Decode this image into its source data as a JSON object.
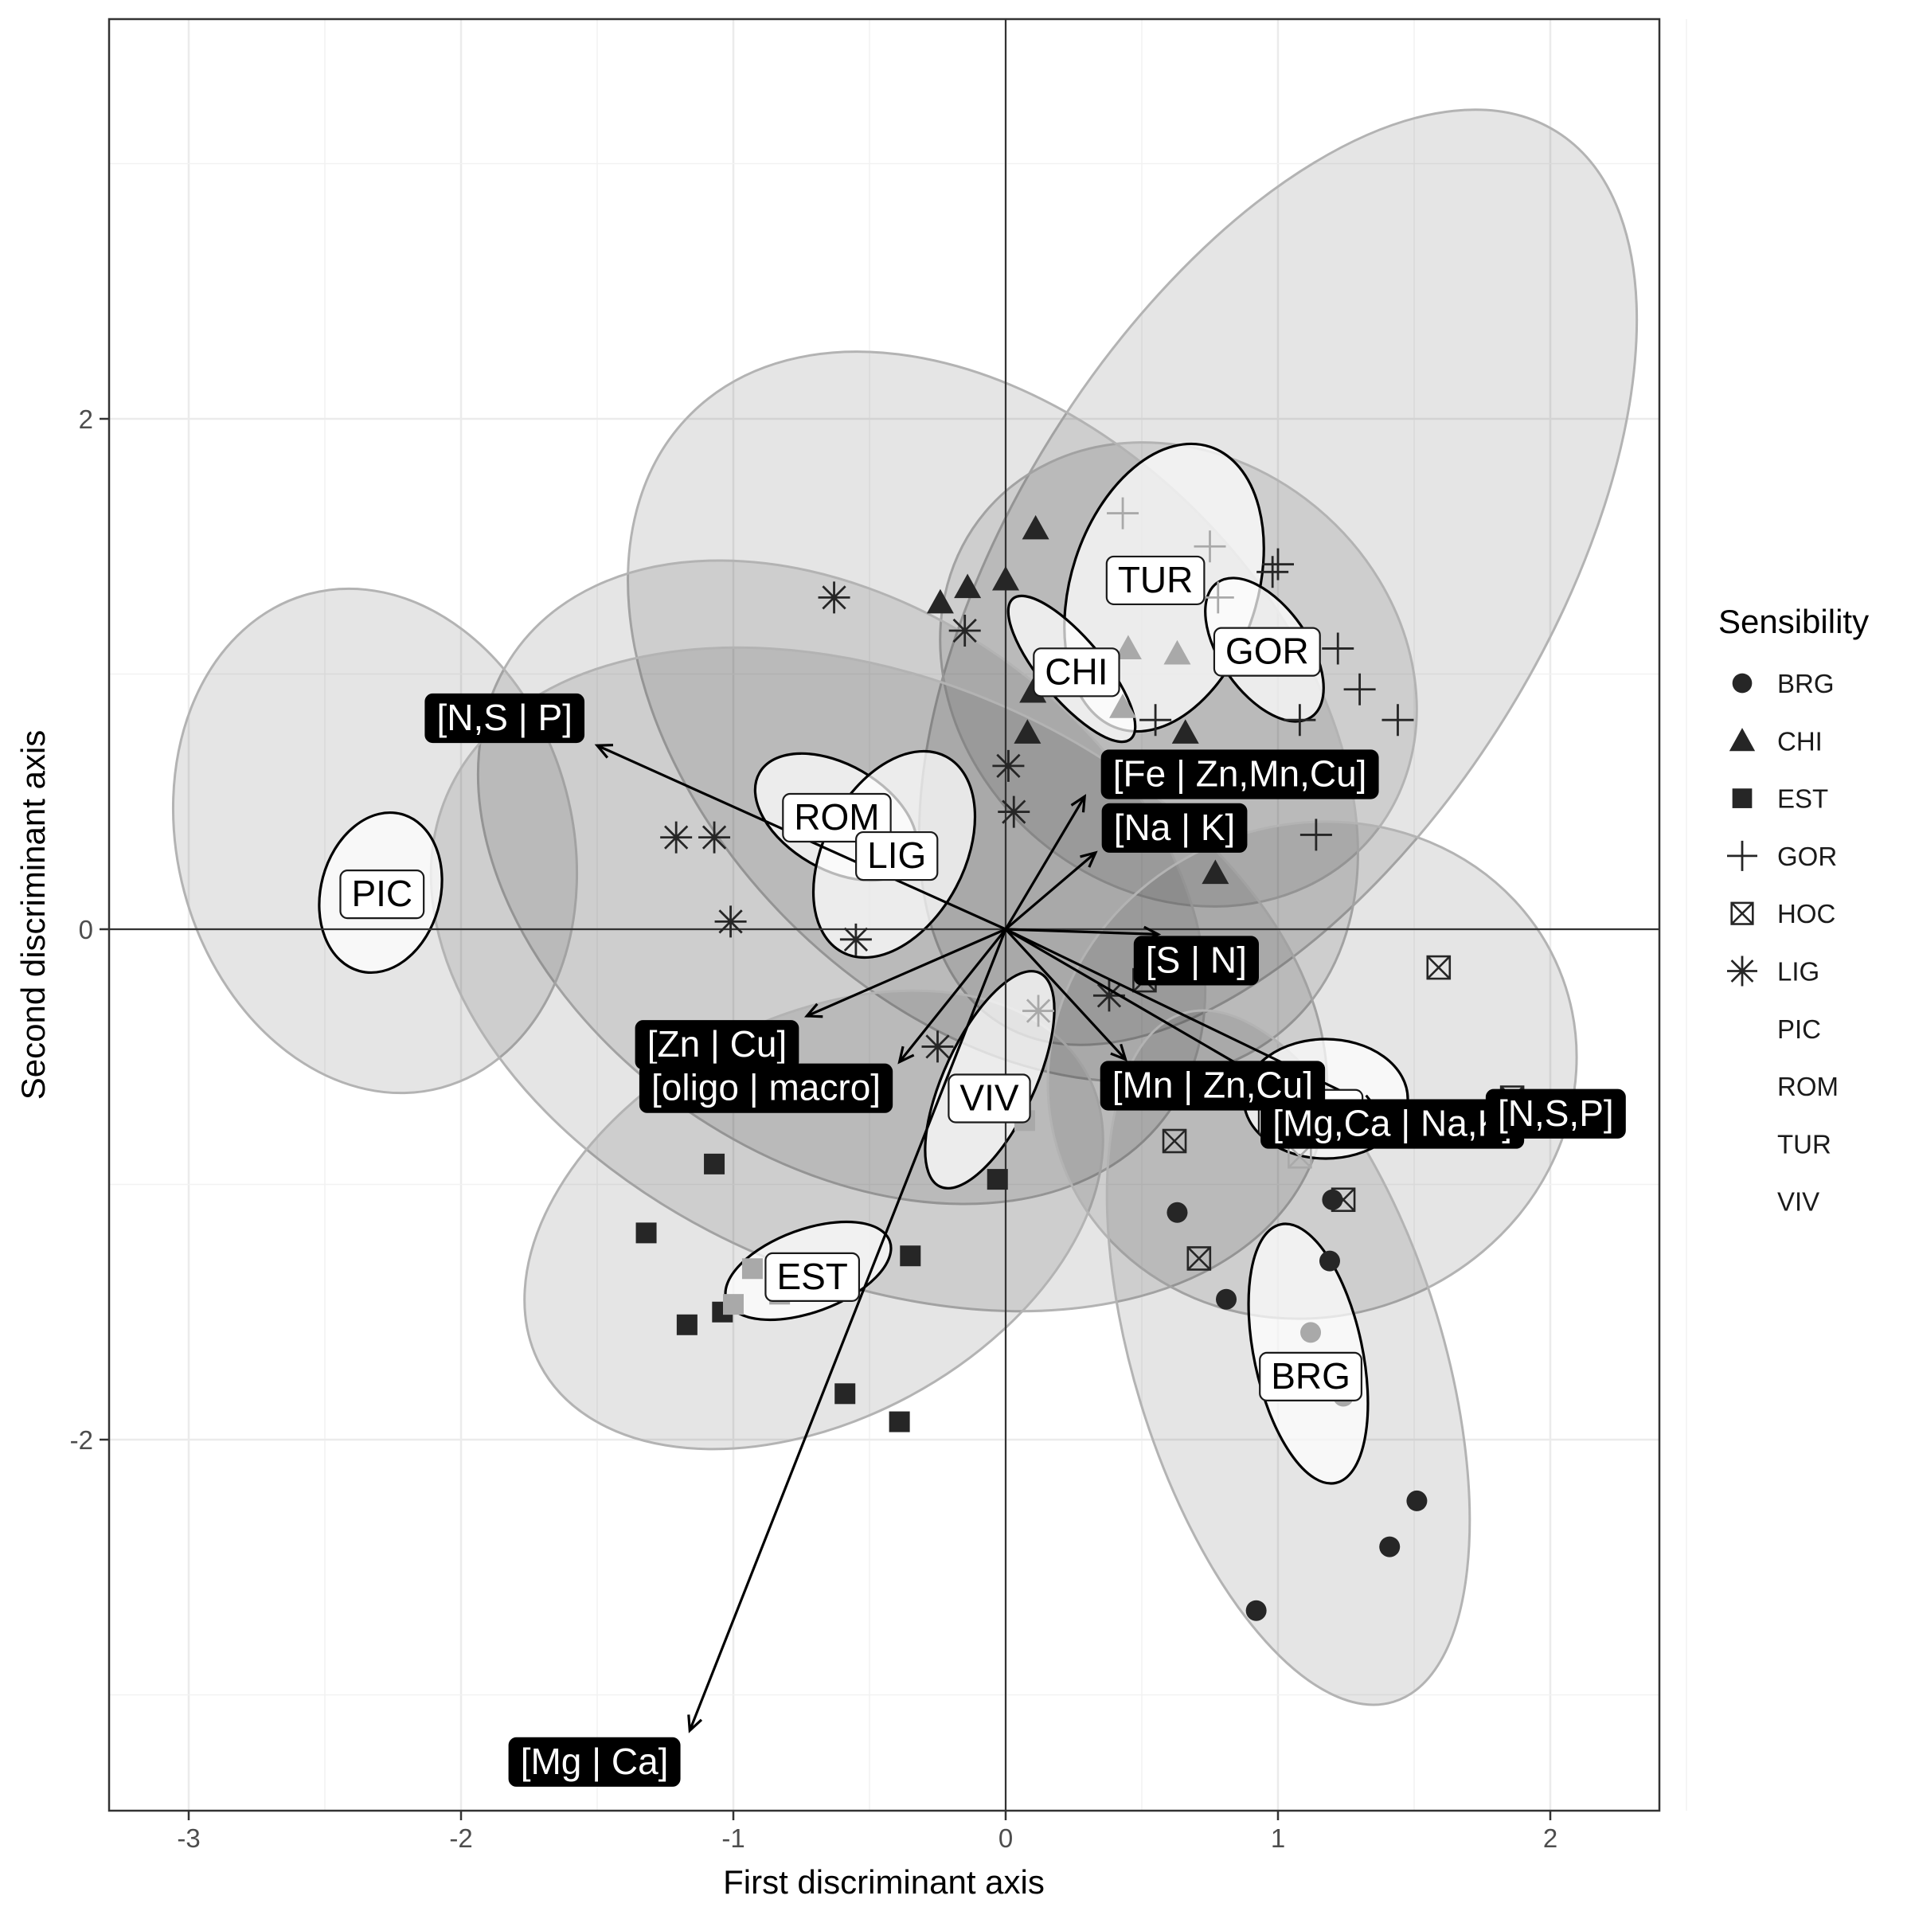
{
  "chart_data": {
    "type": "scatter",
    "title": "",
    "xlabel": "First discriminant axis",
    "ylabel": "Second discriminant axis",
    "xlim": [
      -3.3,
      2.4
    ],
    "ylim": [
      -3.45,
      3.55
    ],
    "x_ticks": [
      -3,
      -2,
      -1,
      0,
      1,
      2
    ],
    "y_ticks": [
      -2,
      0,
      2
    ],
    "x_tick_labels": [
      "-3",
      "-2",
      "-1",
      "0",
      "1",
      "2"
    ],
    "y_tick_labels": [
      "-2",
      "0",
      "2"
    ],
    "grid": true,
    "reference_lines": {
      "x": 0,
      "y": 0
    },
    "legend": {
      "title": "Sensibility",
      "position": "right",
      "entries": [
        {
          "label": "BRG",
          "shape": "circle"
        },
        {
          "label": "CHI",
          "shape": "triangle"
        },
        {
          "label": "EST",
          "shape": "square"
        },
        {
          "label": "GOR",
          "shape": "plus"
        },
        {
          "label": "HOC",
          "shape": "boxed-x"
        },
        {
          "label": "LIG",
          "shape": "asterisk"
        },
        {
          "label": "PIC",
          "shape": "none"
        },
        {
          "label": "ROM",
          "shape": "none"
        },
        {
          "label": "TUR",
          "shape": "none"
        },
        {
          "label": "VIV",
          "shape": "none"
        }
      ]
    },
    "series": [
      {
        "name": "BRG",
        "shape": "circle",
        "points": [
          {
            "x": 0.63,
            "y": -1.11
          },
          {
            "x": 0.81,
            "y": -1.45
          },
          {
            "x": 1.19,
            "y": -1.3
          },
          {
            "x": 1.2,
            "y": -1.06
          },
          {
            "x": 1.51,
            "y": -2.24
          },
          {
            "x": 1.41,
            "y": -2.42
          },
          {
            "x": 0.92,
            "y": -2.67
          },
          {
            "x": 1.12,
            "y": -1.58,
            "muted": true
          },
          {
            "x": 1.24,
            "y": -1.83,
            "muted": true
          }
        ]
      },
      {
        "name": "CHI",
        "shape": "triangle",
        "points": [
          {
            "x": 0.11,
            "y": 1.57
          },
          {
            "x": -0.14,
            "y": 1.34
          },
          {
            "x": 0.0,
            "y": 1.37
          },
          {
            "x": -0.24,
            "y": 1.28
          },
          {
            "x": 0.1,
            "y": 0.93
          },
          {
            "x": 0.08,
            "y": 0.77
          },
          {
            "x": 0.66,
            "y": 0.77
          },
          {
            "x": 0.77,
            "y": 0.22
          },
          {
            "x": 0.45,
            "y": 1.1,
            "muted": true
          },
          {
            "x": 0.63,
            "y": 1.08,
            "muted": true
          },
          {
            "x": 0.43,
            "y": 0.87,
            "muted": true
          }
        ]
      },
      {
        "name": "EST",
        "shape": "square",
        "points": [
          {
            "x": -1.07,
            "y": -0.92
          },
          {
            "x": -1.32,
            "y": -1.19
          },
          {
            "x": -1.17,
            "y": -1.55
          },
          {
            "x": -1.04,
            "y": -1.5
          },
          {
            "x": -0.59,
            "y": -1.82
          },
          {
            "x": -0.39,
            "y": -1.93
          },
          {
            "x": -0.35,
            "y": -1.28
          },
          {
            "x": -0.03,
            "y": -0.98
          },
          {
            "x": -0.93,
            "y": -1.33,
            "muted": true
          },
          {
            "x": -0.83,
            "y": -1.43,
            "muted": true
          },
          {
            "x": -1.0,
            "y": -1.47,
            "muted": true
          },
          {
            "x": 0.07,
            "y": -0.75,
            "muted": true
          }
        ]
      },
      {
        "name": "GOR",
        "shape": "plus",
        "points": [
          {
            "x": 0.98,
            "y": 1.4
          },
          {
            "x": 1.0,
            "y": 1.43
          },
          {
            "x": 1.22,
            "y": 1.1
          },
          {
            "x": 1.3,
            "y": 0.94
          },
          {
            "x": 1.44,
            "y": 0.82
          },
          {
            "x": 1.08,
            "y": 0.82
          },
          {
            "x": 1.14,
            "y": 0.37
          },
          {
            "x": 0.55,
            "y": 0.82
          },
          {
            "x": 0.43,
            "y": 1.63,
            "muted": true
          },
          {
            "x": 0.75,
            "y": 1.5,
            "muted": true
          },
          {
            "x": 0.78,
            "y": 1.3,
            "muted": true
          }
        ]
      },
      {
        "name": "HOC",
        "shape": "boxed-x",
        "points": [
          {
            "x": 1.59,
            "y": -0.15
          },
          {
            "x": 0.51,
            "y": -0.2
          },
          {
            "x": 0.62,
            "y": -0.83
          },
          {
            "x": 1.24,
            "y": -1.06
          },
          {
            "x": 0.71,
            "y": -1.29
          },
          {
            "x": 1.86,
            "y": -0.66
          },
          {
            "x": 1.08,
            "y": -0.89,
            "muted": true
          }
        ]
      },
      {
        "name": "LIG",
        "shape": "asterisk",
        "points": [
          {
            "x": -0.63,
            "y": 1.3
          },
          {
            "x": -0.15,
            "y": 1.17
          },
          {
            "x": 0.01,
            "y": 0.64
          },
          {
            "x": 0.03,
            "y": 0.46
          },
          {
            "x": -1.21,
            "y": 0.36
          },
          {
            "x": -1.07,
            "y": 0.36
          },
          {
            "x": -1.01,
            "y": 0.03
          },
          {
            "x": -0.55,
            "y": -0.04
          },
          {
            "x": -0.25,
            "y": -0.46
          },
          {
            "x": 0.38,
            "y": -0.26
          },
          {
            "x": 0.12,
            "y": -0.32,
            "muted": true
          }
        ]
      }
    ],
    "group_labels": [
      {
        "label": "TUR",
        "x": 0.55,
        "y": 1.37
      },
      {
        "label": "CHI",
        "x": 0.26,
        "y": 1.01
      },
      {
        "label": "GOR",
        "x": 0.96,
        "y": 1.09
      },
      {
        "label": "ROM",
        "x": -0.62,
        "y": 0.44
      },
      {
        "label": "LIG",
        "x": -0.4,
        "y": 0.29
      },
      {
        "label": "PIC",
        "x": -2.29,
        "y": 0.14
      },
      {
        "label": "VIV",
        "x": -0.06,
        "y": -0.66
      },
      {
        "label": "EST",
        "x": -0.71,
        "y": -1.36
      },
      {
        "label": "BRG",
        "x": 1.12,
        "y": -1.75
      },
      {
        "label": "HOC",
        "x": 1.12,
        "y": -0.72
      }
    ],
    "vectors": [
      {
        "label": "[N,S | P]",
        "x": -1.5,
        "y": 0.72,
        "label_x": -1.84,
        "label_y": 0.83
      },
      {
        "label": "[Fe | Zn,Mn,Cu]",
        "x": 0.29,
        "y": 0.52,
        "label_x": 0.86,
        "label_y": 0.61
      },
      {
        "label": "[Na | K]",
        "x": 0.33,
        "y": 0.3,
        "label_x": 0.62,
        "label_y": 0.4
      },
      {
        "label": "[S | N]",
        "x": 0.56,
        "y": -0.02,
        "label_x": 0.7,
        "label_y": -0.12
      },
      {
        "label": "[Zn | Cu]",
        "x": -0.73,
        "y": -0.34,
        "label_x": -1.06,
        "label_y": -0.45
      },
      {
        "label": "[oligo | macro]",
        "x": -0.39,
        "y": -0.52,
        "label_x": -0.88,
        "label_y": -0.62
      },
      {
        "label": "[Mn | Zn,Cu]",
        "x": 0.44,
        "y": -0.51,
        "label_x": 0.76,
        "label_y": -0.61
      },
      {
        "label": "[Mg,Ca | Na,K]",
        "x": 1.08,
        "y": -0.67,
        "label_x": 1.42,
        "label_y": -0.76
      },
      {
        "label": "[N,S,P]",
        "x": 1.36,
        "y": -0.7,
        "label_x": 2.02,
        "label_y": -0.72
      },
      {
        "label": "[Mg | Ca]",
        "x": -1.16,
        "y": -3.14,
        "label_x": -1.51,
        "label_y": -3.26
      }
    ]
  }
}
